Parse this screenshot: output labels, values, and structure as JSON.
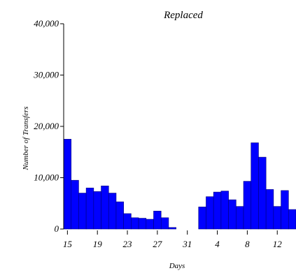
{
  "chart_data": {
    "type": "bar",
    "title": "Replaced",
    "xlabel": "Days",
    "ylabel": "Number of Transfers",
    "ylim": [
      0,
      40000
    ],
    "yticks": [
      {
        "value": 0,
        "label": "0"
      },
      {
        "value": 10000,
        "label": "10,000"
      },
      {
        "value": 20000,
        "label": "20,000"
      },
      {
        "value": 30000,
        "label": "30,000"
      },
      {
        "value": 40000,
        "label": "40,000"
      }
    ],
    "categories": [
      "15",
      "16",
      "17",
      "18",
      "19",
      "20",
      "21",
      "22",
      "23",
      "24",
      "25",
      "26",
      "27",
      "28",
      "29",
      "30",
      "31",
      "1",
      "2",
      "3",
      "4",
      "5",
      "6",
      "7",
      "8",
      "9",
      "10",
      "11",
      "12",
      "13",
      "14"
    ],
    "xticks": [
      {
        "category": "15",
        "label": "15"
      },
      {
        "category": "19",
        "label": "19"
      },
      {
        "category": "23",
        "label": "23"
      },
      {
        "category": "27",
        "label": "27"
      },
      {
        "category": "31",
        "label": "31"
      },
      {
        "category": "4",
        "label": "4"
      },
      {
        "category": "8",
        "label": "8"
      },
      {
        "category": "12",
        "label": "12"
      }
    ],
    "values": [
      17500,
      9500,
      7000,
      8000,
      7300,
      8400,
      7000,
      5300,
      3000,
      2200,
      2100,
      1900,
      3500,
      2200,
      300,
      0,
      0,
      0,
      4300,
      6300,
      7200,
      7400,
      5700,
      4400,
      9300,
      16800,
      14000,
      7700,
      4400,
      7500,
      3800
    ],
    "bar_color": "#0000ff",
    "bar_edge_color": "#00007a",
    "grid": false,
    "legend": "none"
  }
}
